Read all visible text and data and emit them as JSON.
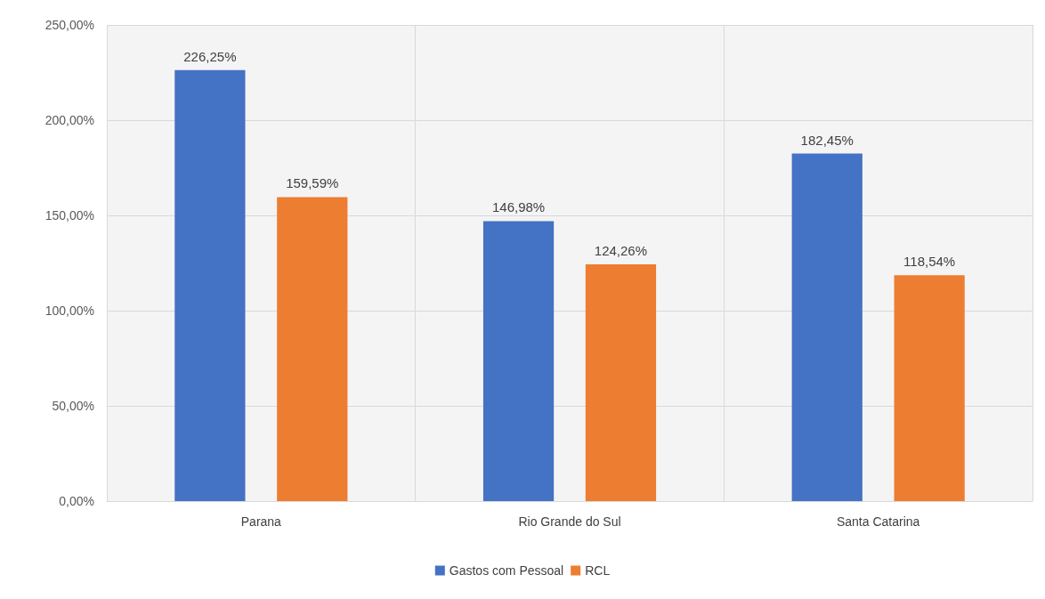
{
  "chart_data": {
    "type": "bar",
    "categories": [
      "Parana",
      "Rio Grande do Sul",
      "Santa Catarina"
    ],
    "series": [
      {
        "name": "Gastos com Pessoal",
        "color": "#4472c4",
        "values": [
          226.25,
          146.98,
          182.45
        ],
        "value_labels": [
          "226,25%",
          "146,98%",
          "182,45%"
        ]
      },
      {
        "name": "RCL",
        "color": "#ed7d31",
        "values": [
          159.59,
          124.26,
          118.54
        ],
        "value_labels": [
          "159,59%",
          "124,26%",
          "118,54%"
        ]
      }
    ],
    "ylim": [
      0,
      250
    ],
    "yticks": [
      {
        "value": 0,
        "label": "0,00%"
      },
      {
        "value": 50,
        "label": "50,00%"
      },
      {
        "value": 100,
        "label": "100,00%"
      },
      {
        "value": 150,
        "label": "150,00%"
      },
      {
        "value": 200,
        "label": "200,00%"
      },
      {
        "value": 250,
        "label": "250,00%"
      }
    ],
    "grid": true,
    "legend": "bottom"
  }
}
